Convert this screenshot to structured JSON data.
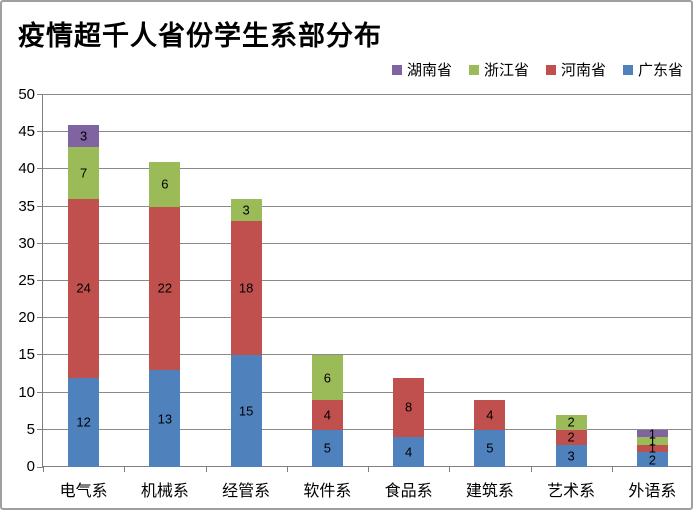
{
  "chart": {
    "title": "疫情超千人省份学生系部分布"
  },
  "chart_data": {
    "type": "bar",
    "stacked": true,
    "title": "疫情超千人省份学生系部分布",
    "categories": [
      "电气系",
      "机械系",
      "经管系",
      "软件系",
      "食品系",
      "建筑系",
      "艺术系",
      "外语系"
    ],
    "series": [
      {
        "name": "广东省",
        "color": "#4F81BD",
        "values": [
          12,
          13,
          15,
          5,
          4,
          5,
          3,
          2
        ]
      },
      {
        "name": "河南省",
        "color": "#C0504D",
        "values": [
          24,
          22,
          18,
          4,
          8,
          4,
          2,
          1
        ]
      },
      {
        "name": "浙江省",
        "color": "#9BBB59",
        "values": [
          7,
          6,
          3,
          6,
          0,
          0,
          2,
          1
        ]
      },
      {
        "name": "湖南省",
        "color": "#8064A2",
        "values": [
          3,
          0,
          0,
          0,
          0,
          0,
          0,
          1
        ]
      }
    ],
    "totals": [
      46,
      41,
      36,
      15,
      12,
      9,
      7,
      5
    ],
    "legend_order": [
      "湖南省",
      "浙江省",
      "河南省",
      "广东省"
    ],
    "legend_position": "top-right",
    "xlabel": "",
    "ylabel": "",
    "ylim": [
      0,
      50
    ],
    "ytick_step": 5,
    "grid": true,
    "data_labels": true,
    "colors": {
      "grid": "#8a8a8a",
      "axis": "#7f7f7f",
      "label": "#000000"
    }
  }
}
